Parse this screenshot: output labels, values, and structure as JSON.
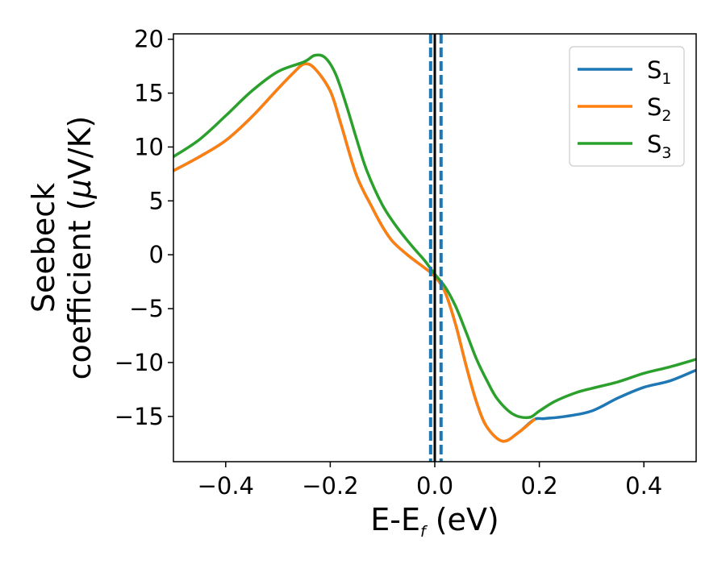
{
  "chart_data": {
    "type": "line",
    "title": "",
    "xlabel": {
      "main": "E-E",
      "sub": "f",
      "unit": " (eV)"
    },
    "ylabel": {
      "line1": "Seebeck",
      "line2_prefix": "coefficient  (",
      "mu": "μ",
      "line2_suffix": "V/K)"
    },
    "xlim": [
      -0.5,
      0.5
    ],
    "ylim": [
      -19.2,
      20.5
    ],
    "xticks": [
      -0.4,
      -0.2,
      0.0,
      0.2,
      0.4
    ],
    "xtick_labels": [
      "−0.4",
      "−0.2",
      "0.0",
      "0.2",
      "0.4"
    ],
    "yticks": [
      20,
      15,
      10,
      5,
      0,
      -5,
      -10,
      -15
    ],
    "ytick_labels": [
      "20",
      "15",
      "10",
      "5",
      "0",
      "−5",
      "−10",
      "−15"
    ],
    "grid": false,
    "legend_position": "top-right",
    "vlines": [
      {
        "x": 0.0,
        "style": "solid",
        "color": "#000000"
      },
      {
        "x": -0.008,
        "style": "dashed",
        "color": "#1f77b4"
      },
      {
        "x": 0.012,
        "style": "dashed",
        "color": "#1f77b4"
      }
    ],
    "series": [
      {
        "name": "S",
        "sub": "1",
        "color": "#1f77b4",
        "x": [
          -0.5,
          -0.45,
          -0.4,
          -0.35,
          -0.3,
          -0.27,
          -0.25,
          -0.23,
          -0.2,
          -0.18,
          -0.15,
          -0.12,
          -0.1,
          -0.08,
          -0.05,
          -0.02,
          0.0,
          0.02,
          0.04,
          0.06,
          0.08,
          0.1,
          0.13,
          0.16,
          0.19,
          0.21,
          0.25,
          0.3,
          0.35,
          0.4,
          0.45,
          0.5
        ],
        "y": [
          7.8,
          9.1,
          10.6,
          12.8,
          15.4,
          16.9,
          17.7,
          17.3,
          15.2,
          12.2,
          7.4,
          4.4,
          2.6,
          1.2,
          -0.1,
          -1.2,
          -2.0,
          -3.5,
          -6.5,
          -10.3,
          -13.7,
          -16.0,
          -17.3,
          -16.5,
          -15.3,
          -15.2,
          -15.0,
          -14.5,
          -13.3,
          -12.3,
          -11.7,
          -10.7
        ]
      },
      {
        "name": "S",
        "sub": "2",
        "color": "#ff7f0e",
        "x": [
          -0.5,
          -0.45,
          -0.4,
          -0.35,
          -0.3,
          -0.27,
          -0.25,
          -0.23,
          -0.2,
          -0.18,
          -0.15,
          -0.12,
          -0.1,
          -0.08,
          -0.05,
          -0.02,
          0.0,
          0.02,
          0.04,
          0.06,
          0.08,
          0.1,
          0.13,
          0.16,
          0.19
        ],
        "y": [
          7.8,
          9.1,
          10.6,
          12.8,
          15.4,
          16.9,
          17.7,
          17.3,
          15.2,
          12.2,
          7.4,
          4.4,
          2.6,
          1.2,
          -0.1,
          -1.2,
          -2.0,
          -3.5,
          -6.5,
          -10.3,
          -13.7,
          -16.0,
          -17.3,
          -16.5,
          -15.3
        ]
      },
      {
        "name": "S",
        "sub": "3",
        "color": "#2ca02c",
        "x": [
          -0.5,
          -0.45,
          -0.4,
          -0.35,
          -0.3,
          -0.25,
          -0.23,
          -0.21,
          -0.19,
          -0.17,
          -0.15,
          -0.13,
          -0.1,
          -0.07,
          -0.04,
          -0.02,
          0.0,
          0.02,
          0.04,
          0.06,
          0.08,
          0.1,
          0.12,
          0.15,
          0.18,
          0.2,
          0.23,
          0.27,
          0.3,
          0.35,
          0.4,
          0.45,
          0.5
        ],
        "y": [
          9.1,
          10.7,
          12.9,
          15.2,
          17.0,
          17.9,
          18.5,
          18.3,
          16.8,
          14.0,
          10.8,
          7.8,
          4.6,
          2.4,
          0.6,
          -0.5,
          -1.8,
          -3.0,
          -4.8,
          -7.2,
          -9.7,
          -11.7,
          -13.4,
          -14.8,
          -15.1,
          -14.5,
          -13.6,
          -12.8,
          -12.4,
          -11.8,
          -11.0,
          -10.4,
          -9.7
        ]
      }
    ]
  }
}
